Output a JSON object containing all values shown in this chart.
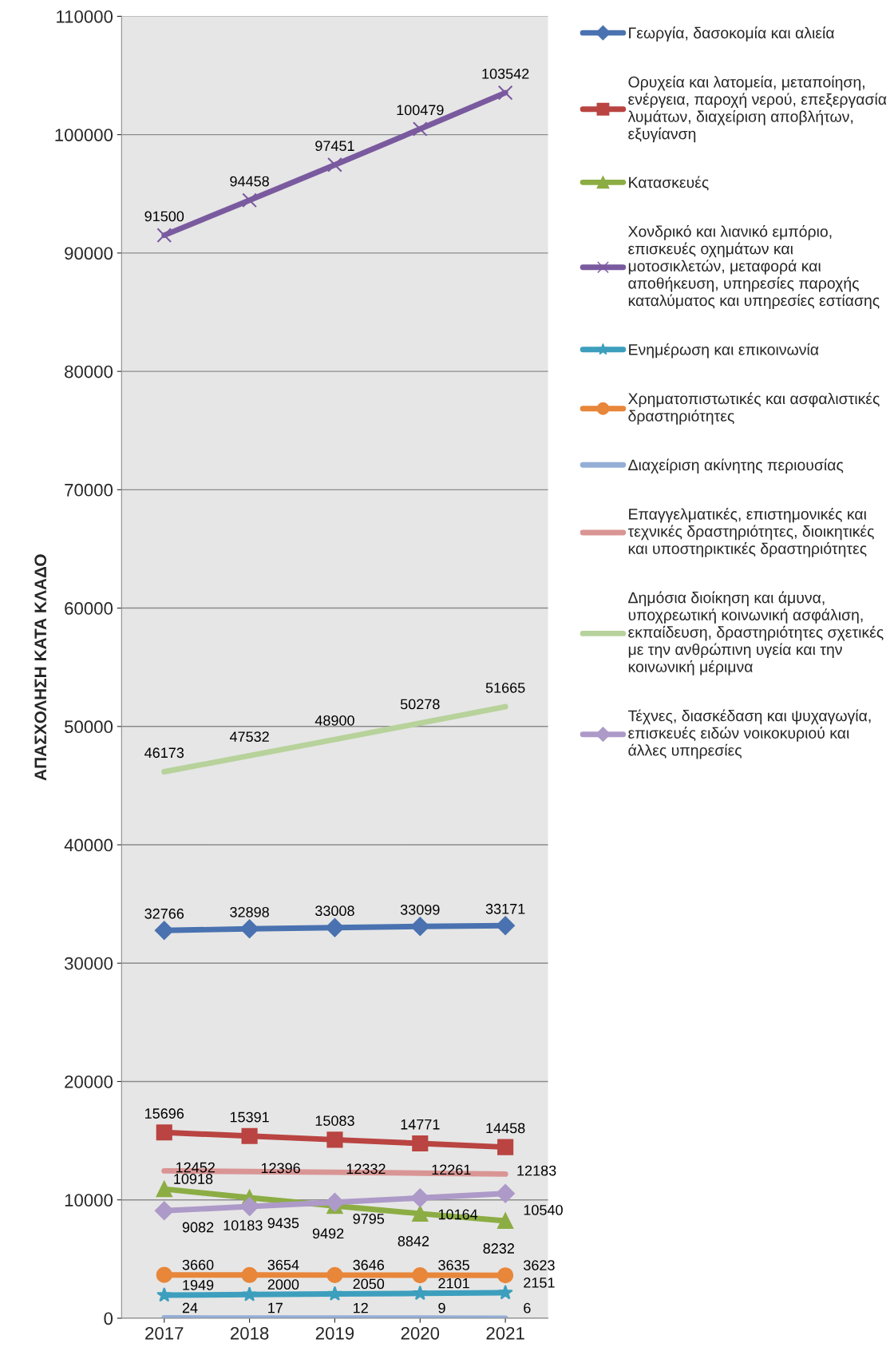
{
  "chart_data": {
    "type": "line",
    "ylabel": "ΑΠΑΣΧΟΛΗΣΗ ΚΑΤΑ ΚΛΑΔΟ",
    "categories": [
      "2017",
      "2018",
      "2019",
      "2020",
      "2021"
    ],
    "ylim": [
      0,
      110000
    ],
    "yticks": [
      0,
      10000,
      20000,
      30000,
      40000,
      50000,
      60000,
      70000,
      80000,
      90000,
      100000,
      110000
    ],
    "grid": "y",
    "legend": "right",
    "data_labels": true,
    "series": [
      {
        "name": "Γεωργία, δασοκομία και αλιεία",
        "color": "#4a72b0",
        "marker": "diamond",
        "values": [
          32766,
          32898,
          33008,
          33099,
          33171
        ]
      },
      {
        "name": "Ορυχεία και λατομεία, μεταποίηση,\nενέργεια, παροχή νερού, επεξεργασία\nλυμάτων, διαχείριση αποβλήτων,\nεξυγίανση",
        "color": "#b94441",
        "marker": "square",
        "values": [
          15696,
          15391,
          15083,
          14771,
          14458
        ]
      },
      {
        "name": "Κατασκευές",
        "color": "#8cad44",
        "marker": "triangle",
        "values": [
          10918,
          10183,
          9492,
          8842,
          8232
        ]
      },
      {
        "name": "Χονδρικό και λιανικό εμπόριο,\nεπισκευές οχημάτων και\nμοτοσικλετών, μεταφορά και\nαποθήκευση, υπηρεσίες παροχής\nκαταλύματος και υπηρεσίες εστίασης",
        "color": "#7a5a9f",
        "marker": "cross",
        "values": [
          91500,
          94458,
          97451,
          100479,
          103542
        ]
      },
      {
        "name": "Ενημέρωση και επικοινωνία",
        "color": "#3d9fbd",
        "marker": "star",
        "values": [
          1949,
          2000,
          2050,
          2101,
          2151
        ]
      },
      {
        "name": "Χρηματοπιστωτικές και ασφαλιστικές\nδραστηριότητες",
        "color": "#e8863a",
        "marker": "circle",
        "values": [
          3660,
          3654,
          3646,
          3635,
          3623
        ]
      },
      {
        "name": "Διαχείριση ακίνητης περιουσίας",
        "color": "#94aed6",
        "marker": "none",
        "values": [
          24,
          17,
          12,
          9,
          6
        ]
      },
      {
        "name": "Επαγγελματικές, επιστημονικές και\nτεχνικές δραστηριότητες, διοικητικές\nκαι υποστηρικτικές δραστηριότητες",
        "color": "#d99594",
        "marker": "none",
        "values": [
          12452,
          12396,
          12332,
          12261,
          12183
        ]
      },
      {
        "name": "Δημόσια διοίκηση και άμυνα,\nυποχρεωτική κοινωνική ασφάλιση,\nεκπαίδευση, δραστηριότητες σχετικές\nμε την ανθρώπινη υγεία και την\nκοινωνική μέριμνα",
        "color": "#b7d29a",
        "marker": "none",
        "values": [
          46173,
          47532,
          48900,
          50278,
          51665
        ]
      },
      {
        "name": "Τέχνες, διασκέδαση και ψυχαγωγία,\nεπισκευές ειδών νοικοκυριού και\nάλλες υπηρεσίες",
        "color": "#ad9ac8",
        "marker": "diamond",
        "values": [
          9082,
          9435,
          9795,
          10164,
          10540
        ]
      }
    ]
  }
}
